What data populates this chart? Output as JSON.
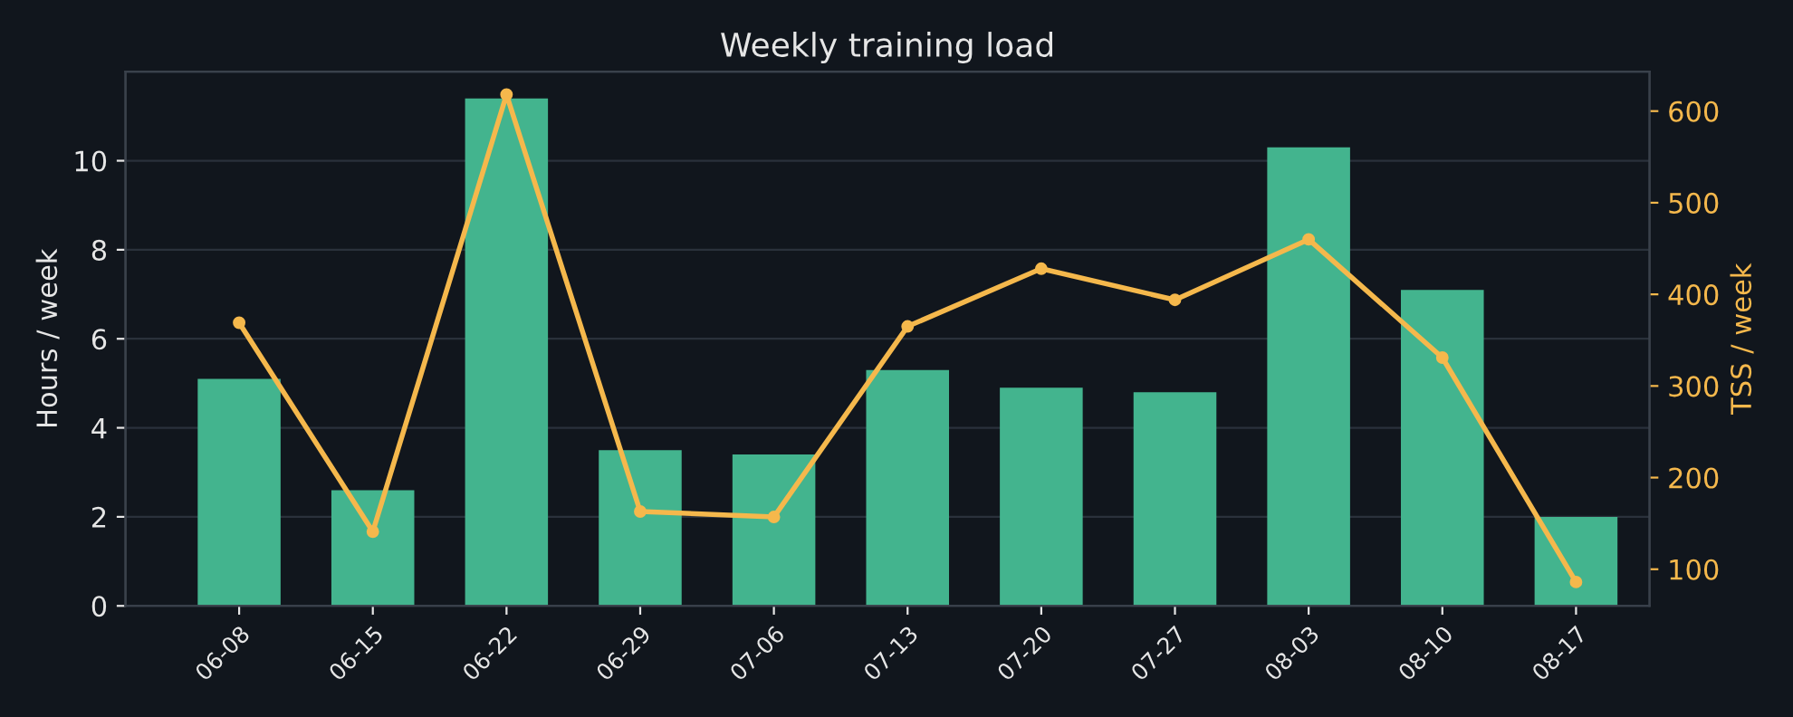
{
  "chart_data": {
    "type": "bar",
    "title": "Weekly training load",
    "ylabel": "Hours / week",
    "y2label": "TSS / week",
    "categories": [
      "06-08",
      "06-15",
      "06-22",
      "06-29",
      "07-06",
      "07-13",
      "07-20",
      "07-27",
      "08-03",
      "08-10",
      "08-17"
    ],
    "series": [
      {
        "color": "#43b48e",
        "values": [
          5.1,
          2.6,
          11.4,
          3.5,
          3.4,
          5.3,
          4.9,
          4.8,
          10.3,
          7.1,
          2.0
        ]
      },
      {
        "type": "line",
        "axis": "y2",
        "color": "#f5b84c",
        "marker": "circle",
        "values": [
          369,
          141,
          618,
          163,
          157,
          365,
          428,
          394,
          460,
          331,
          86
        ]
      }
    ],
    "ylim": [
      0,
      12
    ],
    "yticks": [
      0,
      2,
      4,
      6,
      8,
      10
    ],
    "y2lim": [
      60,
      643
    ],
    "y2ticks": [
      100,
      200,
      300,
      400,
      500,
      600
    ],
    "grid": "y"
  }
}
